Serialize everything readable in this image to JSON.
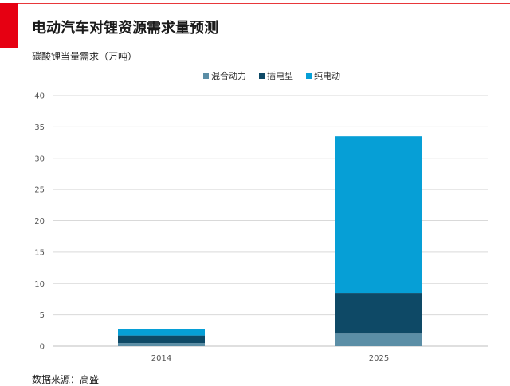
{
  "header": {
    "title": "电动汽车对锂资源需求量预测"
  },
  "footer": {
    "source": "数据来源：高盛"
  },
  "chart_data": {
    "type": "bar",
    "stacked": true,
    "title": "电动汽车对锂资源需求量预测",
    "ylabel": "碳酸锂当量需求（万吨）",
    "xlabel": "",
    "categories": [
      "2014",
      "2025"
    ],
    "series": [
      {
        "name": "混合动力",
        "color": "#5b8ea6",
        "values": [
          0.5,
          2.0
        ]
      },
      {
        "name": "插电型",
        "color": "#0e4966",
        "values": [
          1.2,
          6.5
        ]
      },
      {
        "name": "纯电动",
        "color": "#069fd6",
        "values": [
          1.0,
          25.0
        ]
      }
    ],
    "ylim": [
      0,
      40
    ],
    "yticks": [
      0,
      5,
      10,
      15,
      20,
      25,
      30,
      35,
      40
    ],
    "grid": true,
    "legend_position": "top-center"
  }
}
